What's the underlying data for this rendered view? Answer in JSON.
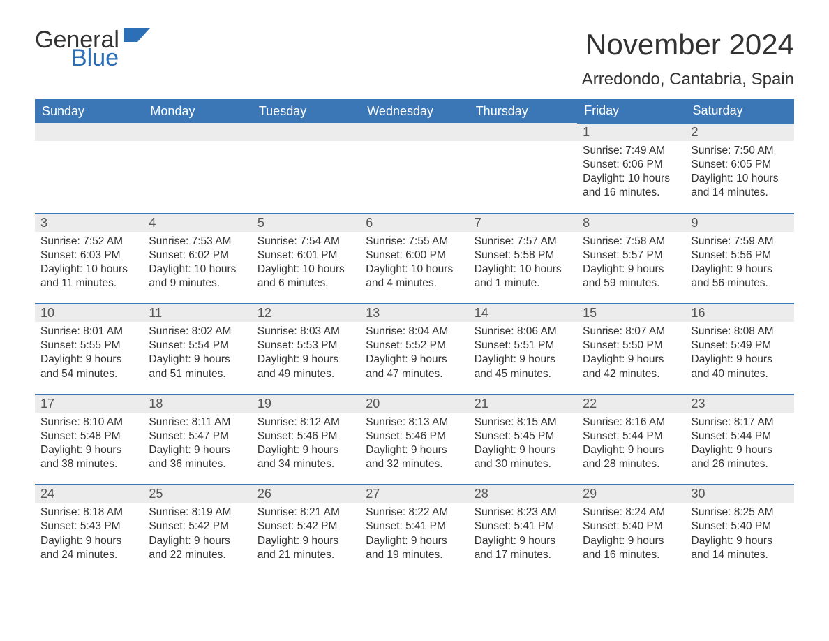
{
  "logo": {
    "general": "General",
    "blue": "Blue"
  },
  "title": "November 2024",
  "location": "Arredondo, Cantabria, Spain",
  "colors": {
    "header_bg": "#3b77b7",
    "header_text": "#ffffff",
    "daynum_bg": "#ececec",
    "row_border": "#3b77b7",
    "text": "#333333",
    "logo_blue": "#2d6fb6",
    "background": "#ffffff"
  },
  "weekdays": [
    "Sunday",
    "Monday",
    "Tuesday",
    "Wednesday",
    "Thursday",
    "Friday",
    "Saturday"
  ],
  "weeks": [
    {
      "days": [
        null,
        null,
        null,
        null,
        null,
        {
          "n": "1",
          "sunrise": "Sunrise: 7:49 AM",
          "sunset": "Sunset: 6:06 PM",
          "dl1": "Daylight: 10 hours",
          "dl2": "and 16 minutes."
        },
        {
          "n": "2",
          "sunrise": "Sunrise: 7:50 AM",
          "sunset": "Sunset: 6:05 PM",
          "dl1": "Daylight: 10 hours",
          "dl2": "and 14 minutes."
        }
      ]
    },
    {
      "days": [
        {
          "n": "3",
          "sunrise": "Sunrise: 7:52 AM",
          "sunset": "Sunset: 6:03 PM",
          "dl1": "Daylight: 10 hours",
          "dl2": "and 11 minutes."
        },
        {
          "n": "4",
          "sunrise": "Sunrise: 7:53 AM",
          "sunset": "Sunset: 6:02 PM",
          "dl1": "Daylight: 10 hours",
          "dl2": "and 9 minutes."
        },
        {
          "n": "5",
          "sunrise": "Sunrise: 7:54 AM",
          "sunset": "Sunset: 6:01 PM",
          "dl1": "Daylight: 10 hours",
          "dl2": "and 6 minutes."
        },
        {
          "n": "6",
          "sunrise": "Sunrise: 7:55 AM",
          "sunset": "Sunset: 6:00 PM",
          "dl1": "Daylight: 10 hours",
          "dl2": "and 4 minutes."
        },
        {
          "n": "7",
          "sunrise": "Sunrise: 7:57 AM",
          "sunset": "Sunset: 5:58 PM",
          "dl1": "Daylight: 10 hours",
          "dl2": "and 1 minute."
        },
        {
          "n": "8",
          "sunrise": "Sunrise: 7:58 AM",
          "sunset": "Sunset: 5:57 PM",
          "dl1": "Daylight: 9 hours",
          "dl2": "and 59 minutes."
        },
        {
          "n": "9",
          "sunrise": "Sunrise: 7:59 AM",
          "sunset": "Sunset: 5:56 PM",
          "dl1": "Daylight: 9 hours",
          "dl2": "and 56 minutes."
        }
      ]
    },
    {
      "days": [
        {
          "n": "10",
          "sunrise": "Sunrise: 8:01 AM",
          "sunset": "Sunset: 5:55 PM",
          "dl1": "Daylight: 9 hours",
          "dl2": "and 54 minutes."
        },
        {
          "n": "11",
          "sunrise": "Sunrise: 8:02 AM",
          "sunset": "Sunset: 5:54 PM",
          "dl1": "Daylight: 9 hours",
          "dl2": "and 51 minutes."
        },
        {
          "n": "12",
          "sunrise": "Sunrise: 8:03 AM",
          "sunset": "Sunset: 5:53 PM",
          "dl1": "Daylight: 9 hours",
          "dl2": "and 49 minutes."
        },
        {
          "n": "13",
          "sunrise": "Sunrise: 8:04 AM",
          "sunset": "Sunset: 5:52 PM",
          "dl1": "Daylight: 9 hours",
          "dl2": "and 47 minutes."
        },
        {
          "n": "14",
          "sunrise": "Sunrise: 8:06 AM",
          "sunset": "Sunset: 5:51 PM",
          "dl1": "Daylight: 9 hours",
          "dl2": "and 45 minutes."
        },
        {
          "n": "15",
          "sunrise": "Sunrise: 8:07 AM",
          "sunset": "Sunset: 5:50 PM",
          "dl1": "Daylight: 9 hours",
          "dl2": "and 42 minutes."
        },
        {
          "n": "16",
          "sunrise": "Sunrise: 8:08 AM",
          "sunset": "Sunset: 5:49 PM",
          "dl1": "Daylight: 9 hours",
          "dl2": "and 40 minutes."
        }
      ]
    },
    {
      "days": [
        {
          "n": "17",
          "sunrise": "Sunrise: 8:10 AM",
          "sunset": "Sunset: 5:48 PM",
          "dl1": "Daylight: 9 hours",
          "dl2": "and 38 minutes."
        },
        {
          "n": "18",
          "sunrise": "Sunrise: 8:11 AM",
          "sunset": "Sunset: 5:47 PM",
          "dl1": "Daylight: 9 hours",
          "dl2": "and 36 minutes."
        },
        {
          "n": "19",
          "sunrise": "Sunrise: 8:12 AM",
          "sunset": "Sunset: 5:46 PM",
          "dl1": "Daylight: 9 hours",
          "dl2": "and 34 minutes."
        },
        {
          "n": "20",
          "sunrise": "Sunrise: 8:13 AM",
          "sunset": "Sunset: 5:46 PM",
          "dl1": "Daylight: 9 hours",
          "dl2": "and 32 minutes."
        },
        {
          "n": "21",
          "sunrise": "Sunrise: 8:15 AM",
          "sunset": "Sunset: 5:45 PM",
          "dl1": "Daylight: 9 hours",
          "dl2": "and 30 minutes."
        },
        {
          "n": "22",
          "sunrise": "Sunrise: 8:16 AM",
          "sunset": "Sunset: 5:44 PM",
          "dl1": "Daylight: 9 hours",
          "dl2": "and 28 minutes."
        },
        {
          "n": "23",
          "sunrise": "Sunrise: 8:17 AM",
          "sunset": "Sunset: 5:44 PM",
          "dl1": "Daylight: 9 hours",
          "dl2": "and 26 minutes."
        }
      ]
    },
    {
      "days": [
        {
          "n": "24",
          "sunrise": "Sunrise: 8:18 AM",
          "sunset": "Sunset: 5:43 PM",
          "dl1": "Daylight: 9 hours",
          "dl2": "and 24 minutes."
        },
        {
          "n": "25",
          "sunrise": "Sunrise: 8:19 AM",
          "sunset": "Sunset: 5:42 PM",
          "dl1": "Daylight: 9 hours",
          "dl2": "and 22 minutes."
        },
        {
          "n": "26",
          "sunrise": "Sunrise: 8:21 AM",
          "sunset": "Sunset: 5:42 PM",
          "dl1": "Daylight: 9 hours",
          "dl2": "and 21 minutes."
        },
        {
          "n": "27",
          "sunrise": "Sunrise: 8:22 AM",
          "sunset": "Sunset: 5:41 PM",
          "dl1": "Daylight: 9 hours",
          "dl2": "and 19 minutes."
        },
        {
          "n": "28",
          "sunrise": "Sunrise: 8:23 AM",
          "sunset": "Sunset: 5:41 PM",
          "dl1": "Daylight: 9 hours",
          "dl2": "and 17 minutes."
        },
        {
          "n": "29",
          "sunrise": "Sunrise: 8:24 AM",
          "sunset": "Sunset: 5:40 PM",
          "dl1": "Daylight: 9 hours",
          "dl2": "and 16 minutes."
        },
        {
          "n": "30",
          "sunrise": "Sunrise: 8:25 AM",
          "sunset": "Sunset: 5:40 PM",
          "dl1": "Daylight: 9 hours",
          "dl2": "and 14 minutes."
        }
      ]
    }
  ]
}
